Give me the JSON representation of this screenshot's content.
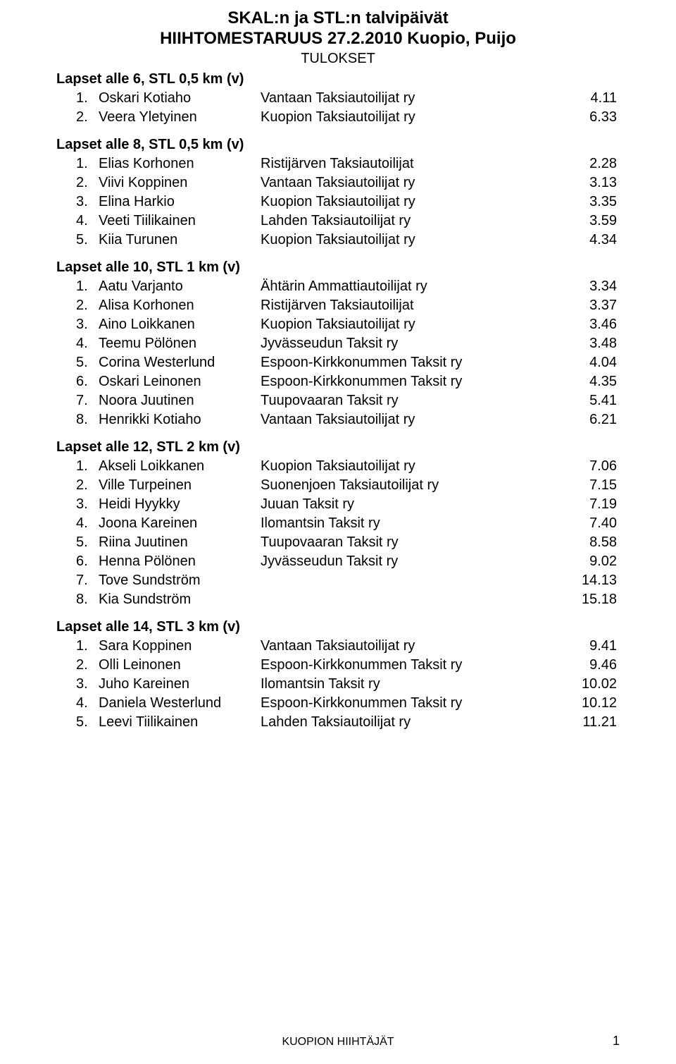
{
  "header": {
    "title_line1": "SKAL:n ja STL:n talvipäivät",
    "title_line2": "HIIHTOMESTARUUS 27.2.2010  Kuopio, Puijo",
    "subtitle": "TULOKSET"
  },
  "sections": [
    {
      "heading": "Lapset alle 6, STL 0,5 km (v)",
      "rows": [
        {
          "rank": "1.",
          "name": "Oskari Kotiaho",
          "club": "Vantaan Taksiautoilijat ry",
          "time": "4.11"
        },
        {
          "rank": "2.",
          "name": "Veera Yletyinen",
          "club": "Kuopion Taksiautoilijat ry",
          "time": "6.33"
        }
      ]
    },
    {
      "heading": "Lapset alle 8, STL 0,5 km (v)",
      "rows": [
        {
          "rank": "1.",
          "name": "Elias Korhonen",
          "club": "Ristijärven Taksiautoilijat",
          "time": "2.28"
        },
        {
          "rank": "2.",
          "name": "Viivi Koppinen",
          "club": "Vantaan Taksiautoilijat ry",
          "time": "3.13"
        },
        {
          "rank": "3.",
          "name": "Elina Harkio",
          "club": "Kuopion Taksiautoilijat ry",
          "time": "3.35"
        },
        {
          "rank": "4.",
          "name": "Veeti Tiilikainen",
          "club": "Lahden Taksiautoilijat ry",
          "time": "3.59"
        },
        {
          "rank": "5.",
          "name": "Kiia Turunen",
          "club": "Kuopion Taksiautoilijat ry",
          "time": "4.34"
        }
      ]
    },
    {
      "heading": "Lapset alle 10, STL 1 km (v)",
      "rows": [
        {
          "rank": "1.",
          "name": "Aatu Varjanto",
          "club": "Ähtärin Ammattiautoilijat ry",
          "time": "3.34"
        },
        {
          "rank": "2.",
          "name": "Alisa Korhonen",
          "club": "Ristijärven Taksiautoilijat",
          "time": "3.37"
        },
        {
          "rank": "3.",
          "name": "Aino Loikkanen",
          "club": "Kuopion Taksiautoilijat ry",
          "time": "3.46"
        },
        {
          "rank": "4.",
          "name": "Teemu Pölönen",
          "club": "Jyvässeudun Taksit ry",
          "time": "3.48"
        },
        {
          "rank": "5.",
          "name": "Corina Westerlund",
          "club": "Espoon-Kirkkonummen Taksit ry",
          "time": "4.04"
        },
        {
          "rank": "6.",
          "name": "Oskari Leinonen",
          "club": "Espoon-Kirkkonummen Taksit ry",
          "time": "4.35"
        },
        {
          "rank": "7.",
          "name": "Noora Juutinen",
          "club": "Tuupovaaran Taksit ry",
          "time": "5.41"
        },
        {
          "rank": "8.",
          "name": "Henrikki Kotiaho",
          "club": "Vantaan Taksiautoilijat ry",
          "time": "6.21"
        }
      ]
    },
    {
      "heading": "Lapset alle 12, STL 2 km (v)",
      "rows": [
        {
          "rank": "1.",
          "name": "Akseli Loikkanen",
          "club": "Kuopion Taksiautoilijat ry",
          "time": "7.06"
        },
        {
          "rank": "2.",
          "name": "Ville Turpeinen",
          "club": "Suonenjoen Taksiautoilijat ry",
          "time": "7.15"
        },
        {
          "rank": "3.",
          "name": "Heidi Hyykky",
          "club": "Juuan Taksit ry",
          "time": "7.19"
        },
        {
          "rank": "4.",
          "name": "Joona Kareinen",
          "club": "Ilomantsin Taksit ry",
          "time": "7.40"
        },
        {
          "rank": "5.",
          "name": "Riina Juutinen",
          "club": "Tuupovaaran Taksit ry",
          "time": "8.58"
        },
        {
          "rank": "6.",
          "name": "Henna Pölönen",
          "club": "Jyvässeudun Taksit ry",
          "time": "9.02"
        },
        {
          "rank": "7.",
          "name": "Tove Sundström",
          "club": "",
          "time": "14.13"
        },
        {
          "rank": "8.",
          "name": "Kia Sundström",
          "club": "",
          "time": "15.18"
        }
      ]
    },
    {
      "heading": "Lapset alle 14, STL 3 km (v)",
      "rows": [
        {
          "rank": "1.",
          "name": "Sara Koppinen",
          "club": "Vantaan Taksiautoilijat ry",
          "time": "9.41"
        },
        {
          "rank": "2.",
          "name": "Olli Leinonen",
          "club": "Espoon-Kirkkonummen Taksit ry",
          "time": "9.46"
        },
        {
          "rank": "3.",
          "name": "Juho Kareinen",
          "club": "Ilomantsin Taksit ry",
          "time": "10.02"
        },
        {
          "rank": "4.",
          "name": "Daniela Westerlund",
          "club": "Espoon-Kirkkonummen Taksit ry",
          "time": "10.12"
        },
        {
          "rank": "5.",
          "name": "Leevi Tiilikainen",
          "club": "Lahden Taksiautoilijat ry",
          "time": "11.21"
        }
      ]
    }
  ],
  "footer": {
    "text": "KUOPION HIIHTÄJÄT",
    "page_number": "1"
  },
  "colors": {
    "background": "#ffffff",
    "text": "#000000"
  },
  "typography": {
    "title_fontsize": 24,
    "body_fontsize": 20,
    "footer_fontsize": 16,
    "font_family": "Arial"
  }
}
